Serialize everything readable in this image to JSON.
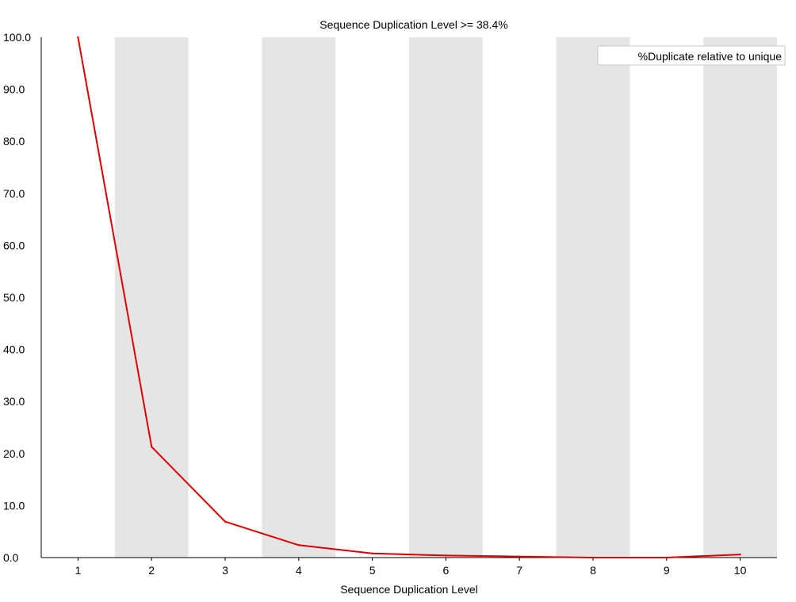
{
  "chart_data": {
    "type": "line",
    "title": "Sequence Duplication Level >= 38.4%",
    "xlabel": "Sequence Duplication Level",
    "ylabel": "",
    "categories": [
      "1",
      "2",
      "3",
      "4",
      "5",
      "6",
      "7",
      "8",
      "9",
      "10"
    ],
    "y_ticks": [
      "0.0",
      "10.0",
      "20.0",
      "30.0",
      "40.0",
      "50.0",
      "60.0",
      "70.0",
      "80.0",
      "90.0",
      "100.0"
    ],
    "ylim": [
      0,
      100
    ],
    "series": [
      {
        "name": "%Duplicate relative to unique",
        "color": "#dd0000",
        "values": [
          100.0,
          21.3,
          6.9,
          2.4,
          0.8,
          0.4,
          0.2,
          0.0,
          0.0,
          0.6
        ]
      }
    ],
    "legend_position": "top-right",
    "background_bands": "alternating grey columns at even categories"
  },
  "colors": {
    "line": "#dd0000",
    "band": "#e5e5e5",
    "axis": "#000000",
    "legend_text": "#dd0000",
    "legend_border": "#c8c8c8"
  }
}
